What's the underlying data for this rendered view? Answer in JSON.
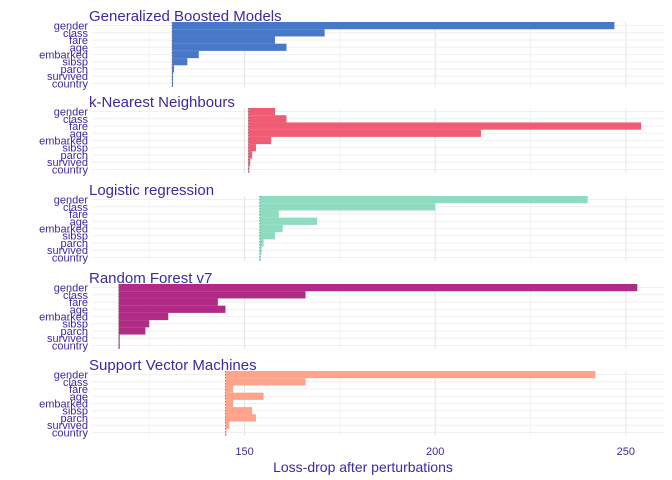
{
  "chart_data": {
    "type": "bar",
    "orientation": "horizontal",
    "xlabel": "Loss-drop after perturbations",
    "xlim": [
      110,
      260
    ],
    "x_ticks": [
      150,
      200,
      250
    ],
    "variables": [
      "gender",
      "class",
      "fare",
      "age",
      "embarked",
      "sibsp",
      "parch",
      "survived",
      "country"
    ],
    "panels": [
      {
        "title": "Generalized Boosted Models",
        "color": "#4878c8",
        "baseline": 131,
        "values": {
          "gender": 247,
          "class": 171,
          "fare": 158,
          "age": 161,
          "embarked": 138,
          "sibsp": 135,
          "parch": 131.5,
          "survived": 131.2,
          "country": 131
        }
      },
      {
        "title": "k-Nearest Neighbours",
        "color": "#f05c74",
        "baseline": 151,
        "values": {
          "gender": 158,
          "class": 161,
          "fare": 254,
          "age": 212,
          "embarked": 157,
          "sibsp": 153,
          "parch": 152,
          "survived": 151.5,
          "country": 151
        }
      },
      {
        "title": "Logistic regression",
        "color": "#8ddcbf",
        "baseline": 154,
        "values": {
          "gender": 240,
          "class": 200,
          "fare": 159,
          "age": 169,
          "embarked": 160,
          "sibsp": 158,
          "parch": 155,
          "survived": 154.5,
          "country": 154
        }
      },
      {
        "title": "Random Forest v7",
        "color": "#b02a86",
        "baseline": 117,
        "values": {
          "gender": 253,
          "class": 166,
          "fare": 143,
          "age": 145,
          "embarked": 130,
          "sibsp": 125,
          "parch": 124,
          "survived": 117,
          "country": 117
        }
      },
      {
        "title": "Support Vector Machines",
        "color": "#ffa38a",
        "baseline": 145,
        "values": {
          "gender": 242,
          "class": 166,
          "fare": 147,
          "age": 155,
          "embarked": 147,
          "sibsp": 152,
          "parch": 153,
          "survived": 146,
          "country": 145
        }
      }
    ]
  }
}
